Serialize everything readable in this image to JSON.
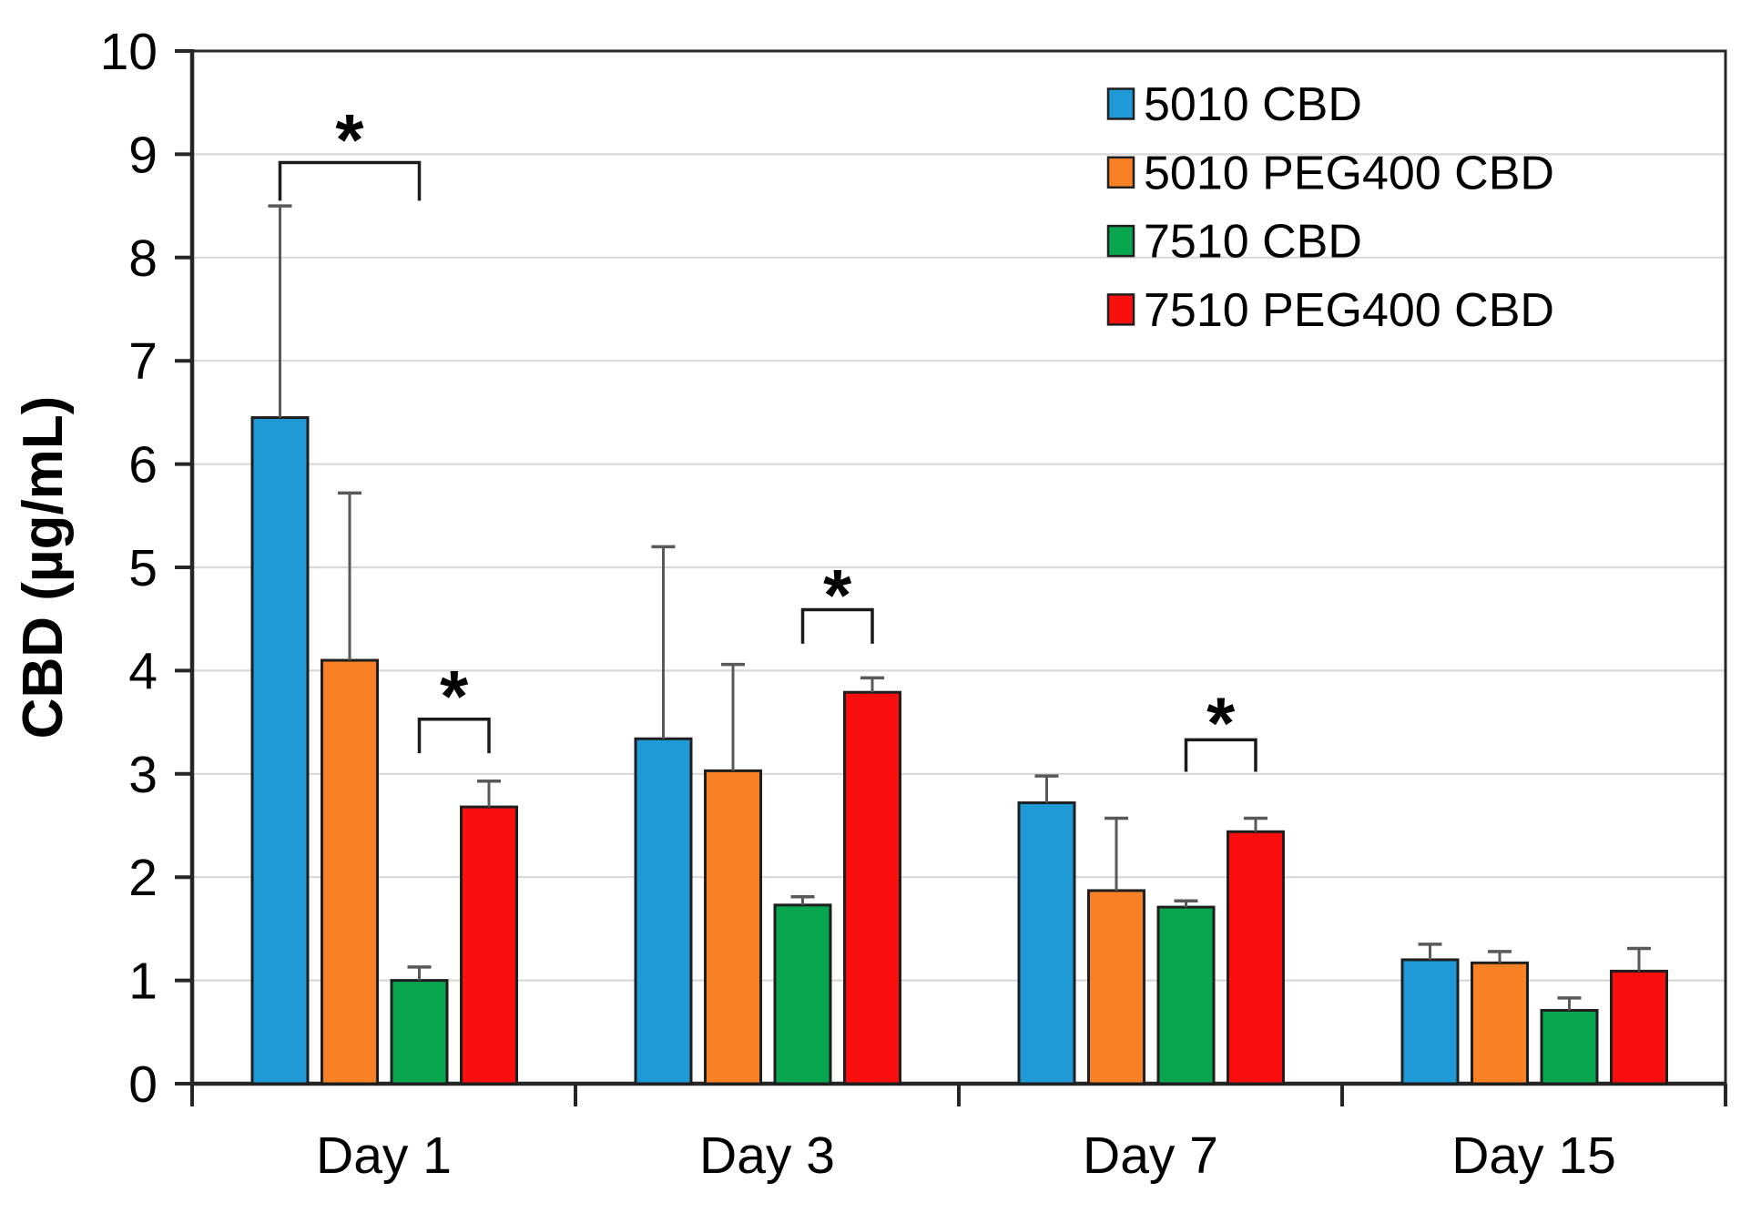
{
  "chart_data": {
    "type": "bar",
    "title": "",
    "xlabel": "",
    "ylabel": "CBD (µg/mL)",
    "ylim": [
      0,
      10
    ],
    "ytick_labels": [
      "0",
      "1",
      "2",
      "3",
      "4",
      "5",
      "6",
      "7",
      "8",
      "9",
      "10"
    ],
    "grid": true,
    "legend_position": "top-right-inside",
    "categories": [
      "Day 1",
      "Day 3",
      "Day 7",
      "Day 15"
    ],
    "series": [
      {
        "name": "5010 CBD",
        "color": "#1F9AD7",
        "values": [
          6.45,
          3.34,
          2.72,
          1.2
        ],
        "errors": [
          2.05,
          1.86,
          0.26,
          0.15
        ]
      },
      {
        "name": "5010 PEG400 CBD",
        "color": "#F98125",
        "values": [
          4.1,
          3.03,
          1.87,
          1.17
        ],
        "errors": [
          1.62,
          1.03,
          0.7,
          0.11
        ]
      },
      {
        "name": "7510 CBD",
        "color": "#07A64F",
        "values": [
          1.0,
          1.73,
          1.71,
          0.71
        ],
        "errors": [
          0.13,
          0.08,
          0.06,
          0.12
        ]
      },
      {
        "name": "7510 PEG400 CBD",
        "color": "#FA0F0F",
        "values": [
          2.68,
          3.79,
          2.44,
          1.09
        ],
        "errors": [
          0.25,
          0.14,
          0.13,
          0.22
        ]
      }
    ],
    "significance": [
      {
        "category": 0,
        "series_a": 0,
        "series_b": 2,
        "label": "*",
        "bracket_top": 8.92,
        "leg_bottom": 8.55,
        "label_center": 9.27
      },
      {
        "category": 0,
        "series_a": 2,
        "series_b": 3,
        "label": "*",
        "bracket_top": 3.53,
        "leg_bottom": 3.2,
        "label_center": 3.88
      },
      {
        "category": 1,
        "series_a": 2,
        "series_b": 3,
        "label": "*",
        "bracket_top": 4.59,
        "leg_bottom": 4.26,
        "label_center": 4.86
      },
      {
        "category": 2,
        "series_a": 2,
        "series_b": 3,
        "label": "*",
        "bracket_top": 3.33,
        "leg_bottom": 3.02,
        "label_center": 3.62
      }
    ]
  },
  "styles": {
    "axis_color": "#262626",
    "grid_color": "#D9D9D9",
    "bar_stroke": "#1f1f1f",
    "error_color": "#595959",
    "bracket_color": "#1a1a1a",
    "text_color": "#000000"
  }
}
